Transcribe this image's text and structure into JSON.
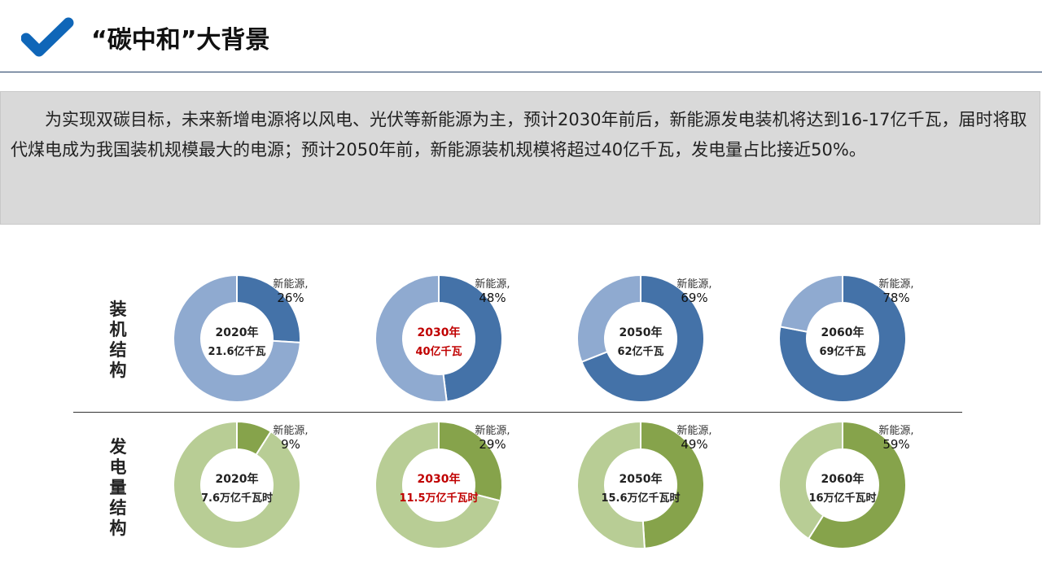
{
  "header": {
    "title": "“碳中和”大背景",
    "icon": "checkmark-icon",
    "accent": "#0f66b8"
  },
  "intro": "为实现双碳目标，未来新增电源将以风电、光伏等新能源为主，预计2030年前后，新能源发电装机将达到16-17亿千瓦，届时将取代煤电成为我国装机规模最大的电源；预计2050年前，新能源装机规模将超过40亿千瓦，发电量占比接近50%。",
  "row_labels": {
    "capacity": "装机结构",
    "generation": "发电量结构"
  },
  "chart_data": [
    {
      "type": "pie",
      "group": "装机结构",
      "colors": {
        "new_energy": "#4472a8",
        "other": "#8faad0"
      },
      "charts": [
        {
          "year": "2020年",
          "total": "21.6亿千瓦",
          "slice_label": "新能源,",
          "value": 26,
          "value_label": "26%",
          "highlight": false
        },
        {
          "year": "2030年",
          "total": "40亿千瓦",
          "slice_label": "新能源,",
          "value": 48,
          "value_label": "48%",
          "highlight": true
        },
        {
          "year": "2050年",
          "total": "62亿千瓦",
          "slice_label": "新能源,",
          "value": 69,
          "value_label": "69%",
          "highlight": false
        },
        {
          "year": "2060年",
          "total": "69亿千瓦",
          "slice_label": "新能源,",
          "value": 78,
          "value_label": "78%",
          "highlight": false
        }
      ]
    },
    {
      "type": "pie",
      "group": "发电量结构",
      "colors": {
        "new_energy": "#86a34b",
        "other": "#b8cd95"
      },
      "charts": [
        {
          "year": "2020年",
          "total": "7.6万亿千瓦时",
          "slice_label": "新能源,",
          "value": 9,
          "value_label": "9%",
          "highlight": false
        },
        {
          "year": "2030年",
          "total": "11.5万亿千瓦时",
          "slice_label": "新能源,",
          "value": 29,
          "value_label": "29%",
          "highlight": true
        },
        {
          "year": "2050年",
          "total": "15.6万亿千瓦时",
          "slice_label": "新能源,",
          "value": 49,
          "value_label": "49%",
          "highlight": false
        },
        {
          "year": "2060年",
          "total": "16万亿千瓦时",
          "slice_label": "新能源,",
          "value": 59,
          "value_label": "59%",
          "highlight": false
        }
      ]
    }
  ],
  "highlight_color": "#c00000"
}
